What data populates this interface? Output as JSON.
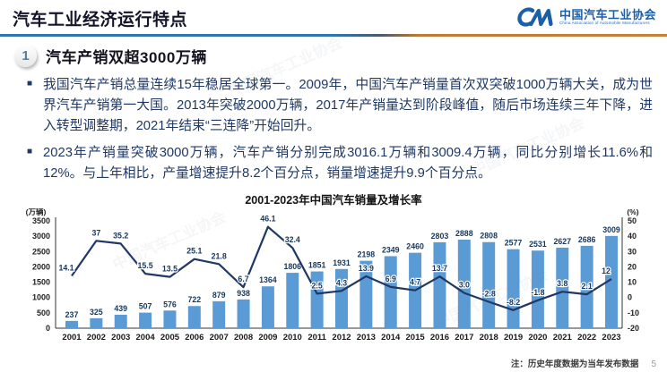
{
  "header": {
    "title": "汽车工业经济运行特点",
    "logo": {
      "monogram": "CM",
      "org_cn": "中国汽车工业协会",
      "org_en": "China Association of Automobile Manufacturers"
    }
  },
  "section": {
    "number": "1",
    "title": "汽车产销双超3000万辆"
  },
  "bullets": [
    "我国汽车产销总量连续15年稳居全球第一。2009年，中国汽车产销量首次双突破1000万辆大关，成为世界汽车产销第一大国。2013年突破2000万辆，2017年产销量达到阶段峰值，随后市场连续三年下降，进入转型调整期，2021年结束“三连降”开始回升。",
    "2023年产销量突破3000万辆，汽车产销分别完成3016.1万辆和3009.4万辆，同比分别增长11.6%和12%。与上年相比，产量增速提升8.2个百分点，销量增速提升9.9个百分点。"
  ],
  "chart_data": {
    "type": "bar",
    "subtype": "bar+line combo, dual axis",
    "title": "2001-2023年中国汽车销量及增长率",
    "categories": [
      "2001",
      "2002",
      "2003",
      "2004",
      "2005",
      "2006",
      "2007",
      "2008",
      "2009",
      "2010",
      "2011",
      "2012",
      "2013",
      "2014",
      "2015",
      "2016",
      "2017",
      "2018",
      "2019",
      "2020",
      "2021",
      "2022",
      "2023"
    ],
    "series": [
      {
        "name": "销量",
        "type": "bar",
        "unit": "万辆",
        "color": "#5b9bd5",
        "values": [
          237,
          325,
          439,
          507,
          576,
          722,
          879,
          938,
          1364,
          1806,
          1851,
          1931,
          2198,
          2349,
          2460,
          2803,
          2888,
          2808,
          2577,
          2531,
          2627,
          2686,
          3009
        ]
      },
      {
        "name": "增长率",
        "type": "line",
        "unit": "%",
        "color": "#1f3864",
        "values": [
          14.1,
          37,
          35.2,
          15.5,
          13.5,
          25.1,
          21.8,
          6.7,
          46.1,
          32.4,
          2.5,
          4.3,
          13.9,
          6.9,
          4.7,
          13.7,
          3.0,
          -2.8,
          -8.2,
          -1.8,
          3.8,
          2.1,
          12
        ],
        "labels": [
          "14.1",
          "37",
          "35.2",
          "15.5",
          "13.5",
          "25.1",
          "21.8",
          "6.7",
          "46.1",
          "32.4",
          "2.5",
          "4.3",
          "13.9",
          "6.9",
          "4.7",
          "13.7",
          "3.0",
          "-2.8",
          "-8.2",
          "-1.8",
          "3.8",
          "2.1",
          "12"
        ]
      }
    ],
    "left_axis": {
      "label": "(万辆)",
      "min": 0,
      "max": 3500,
      "ticks": [
        0,
        500,
        1000,
        1500,
        2000,
        2500,
        3000,
        3500
      ]
    },
    "right_axis": {
      "label": "(%)",
      "min": -20,
      "max": 50,
      "ticks": [
        -20,
        -10,
        0,
        10,
        20,
        30,
        40,
        50
      ]
    },
    "grid": false,
    "legend": "none"
  },
  "footnote": "注：历史年度数据为当年发布数据",
  "page_number": "5",
  "colors": {
    "bar": "#5b9bd5",
    "line": "#1f3864",
    "body_text": "#1f3864",
    "brand_blue": "#1b5faa",
    "divider_blue": "#2e75b6",
    "divider_orange": "#c8803a"
  }
}
